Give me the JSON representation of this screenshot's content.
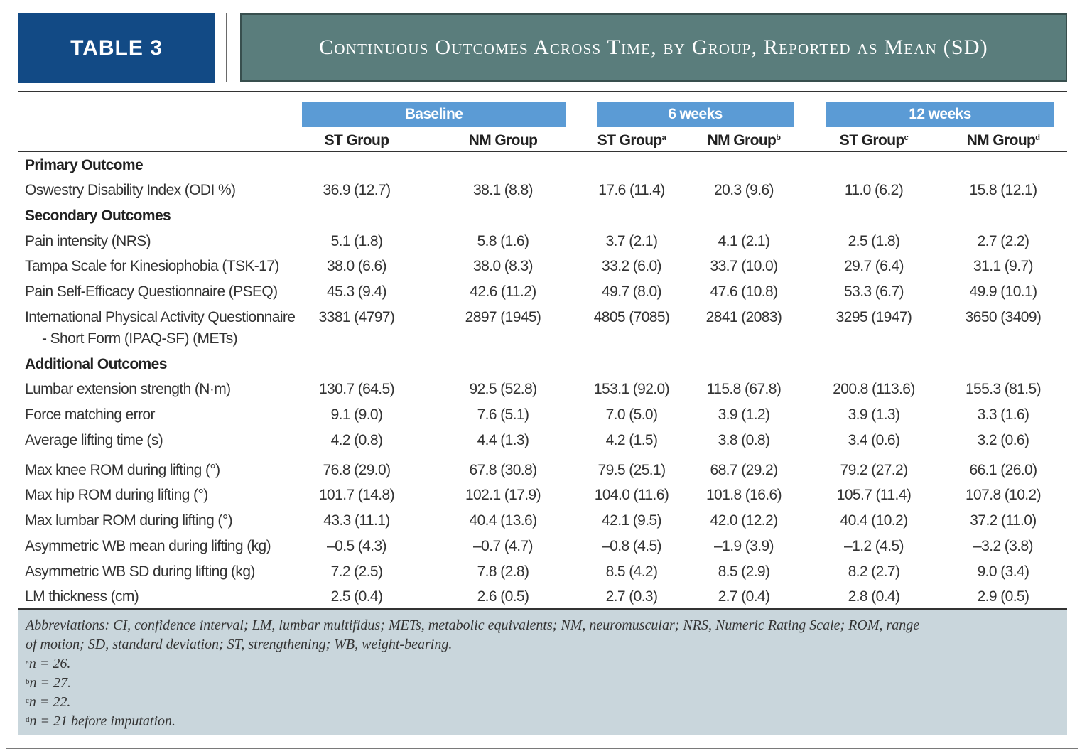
{
  "table_label": "TABLE 3",
  "table_title": "Continuous Outcomes Across Time, by Group, Reported as Mean (SD)",
  "groups": [
    "Baseline",
    "6 weeks",
    "12 weeks"
  ],
  "columns": [
    {
      "label": "ST Group",
      "sup": ""
    },
    {
      "label": "NM Group",
      "sup": ""
    },
    {
      "label": "ST Group",
      "sup": "a"
    },
    {
      "label": "NM Group",
      "sup": "b"
    },
    {
      "label": "ST Group",
      "sup": "c"
    },
    {
      "label": "NM Group",
      "sup": "d"
    }
  ],
  "rows": [
    {
      "label": "Primary Outcome",
      "section": true
    },
    {
      "label": "Oswestry Disability Index (ODI %)",
      "values": [
        "36.9 (12.7)",
        "38.1 (8.8)",
        "17.6 (11.4)",
        "20.3 (9.6)",
        "11.0 (6.2)",
        "15.8 (12.1)"
      ]
    },
    {
      "label": "Secondary Outcomes",
      "section": true
    },
    {
      "label": "Pain intensity (NRS)",
      "values": [
        "5.1 (1.8)",
        "5.8 (1.6)",
        "3.7 (2.1)",
        "4.1 (2.1)",
        "2.5 (1.8)",
        "2.7 (2.2)"
      ]
    },
    {
      "label": "Tampa Scale for Kinesiophobia (TSK-17)",
      "values": [
        "38.0 (6.6)",
        "38.0 (8.3)",
        "33.2 (6.0)",
        "33.7 (10.0)",
        "29.7 (6.4)",
        "31.1 (9.7)"
      ]
    },
    {
      "label": "Pain Self-Efficacy Questionnaire (PSEQ)",
      "values": [
        "45.3 (9.4)",
        "42.6 (11.2)",
        "49.7 (8.0)",
        "47.6 (10.8)",
        "53.3 (6.7)",
        "49.9 (10.1)"
      ]
    },
    {
      "label": "International Physical Activity Questionnaire",
      "label2": "- Short Form (IPAQ-SF) (METs)",
      "values": [
        "3381 (4797)",
        "2897 (1945)",
        "4805 (7085)",
        "2841 (2083)",
        "3295 (1947)",
        "3650 (3409)"
      ]
    },
    {
      "label": "Additional Outcomes",
      "section": true
    },
    {
      "label": "Lumbar extension strength (N·m)",
      "values": [
        "130.7 (64.5)",
        "92.5 (52.8)",
        "153.1 (92.0)",
        "115.8 (67.8)",
        "200.8 (113.6)",
        "155.3 (81.5)"
      ]
    },
    {
      "label": "Force matching error",
      "values": [
        "9.1 (9.0)",
        "7.6 (5.1)",
        "7.0 (5.0)",
        "3.9 (1.2)",
        "3.9 (1.3)",
        "3.3 (1.6)"
      ]
    },
    {
      "label": "Average lifting time (s)",
      "values": [
        "4.2 (0.8)",
        "4.4 (1.3)",
        "4.2 (1.5)",
        "3.8 (0.8)",
        "3.4 (0.6)",
        "3.2 (0.6)"
      ]
    },
    {
      "label": "Max knee ROM during lifting (°)",
      "values": [
        "76.8 (29.0)",
        "67.8 (30.8)",
        "79.5 (25.1)",
        "68.7 (29.2)",
        "79.2 (27.2)",
        "66.1 (26.0)"
      ]
    },
    {
      "label": "Max hip ROM during lifting (°)",
      "values": [
        "101.7 (14.8)",
        "102.1 (17.9)",
        "104.0 (11.6)",
        "101.8 (16.6)",
        "105.7 (11.4)",
        "107.8 (10.2)"
      ]
    },
    {
      "label": "Max lumbar ROM during lifting (°)",
      "values": [
        "43.3 (11.1)",
        "40.4 (13.6)",
        "42.1 (9.5)",
        "42.0 (12.2)",
        "40.4 (10.2)",
        "37.2 (11.0)"
      ]
    },
    {
      "label": "Asymmetric WB mean during lifting (kg)",
      "values": [
        "–0.5 (4.3)",
        "–0.7 (4.7)",
        "–0.8 (4.5)",
        "–1.9 (3.9)",
        "–1.2 (4.5)",
        "–3.2 (3.8)"
      ]
    },
    {
      "label": "Asymmetric WB SD during lifting (kg)",
      "values": [
        "7.2 (2.5)",
        "7.8 (2.8)",
        "8.5 (4.2)",
        "8.5 (2.9)",
        "8.2 (2.7)",
        "9.0 (3.4)"
      ]
    },
    {
      "label": "LM thickness (cm)",
      "values": [
        "2.5 (0.4)",
        "2.6 (0.5)",
        "2.7 (0.3)",
        "2.7 (0.4)",
        "2.8 (0.4)",
        "2.9 (0.5)"
      ]
    }
  ],
  "footnotes": [
    {
      "sup": "",
      "text": "Abbreviations: CI, confidence interval; LM, lumbar multifidus; METs, metabolic equivalents; NM, neuromuscular; NRS, Numeric Rating Scale; ROM, range"
    },
    {
      "sup": "",
      "text": "of motion; SD, standard deviation; ST, strengthening; WB, weight-bearing."
    },
    {
      "sup": "a",
      "text": "n = 26."
    },
    {
      "sup": "b",
      "text": "n = 27."
    },
    {
      "sup": "c",
      "text": "n = 22."
    },
    {
      "sup": "d",
      "text": "n = 21 before imputation."
    }
  ],
  "colors": {
    "label_bg": "#124a85",
    "title_bg": "#5a7d7c",
    "group_bg": "#5b9bd5",
    "footnote_bg": "#c9d6dc"
  }
}
